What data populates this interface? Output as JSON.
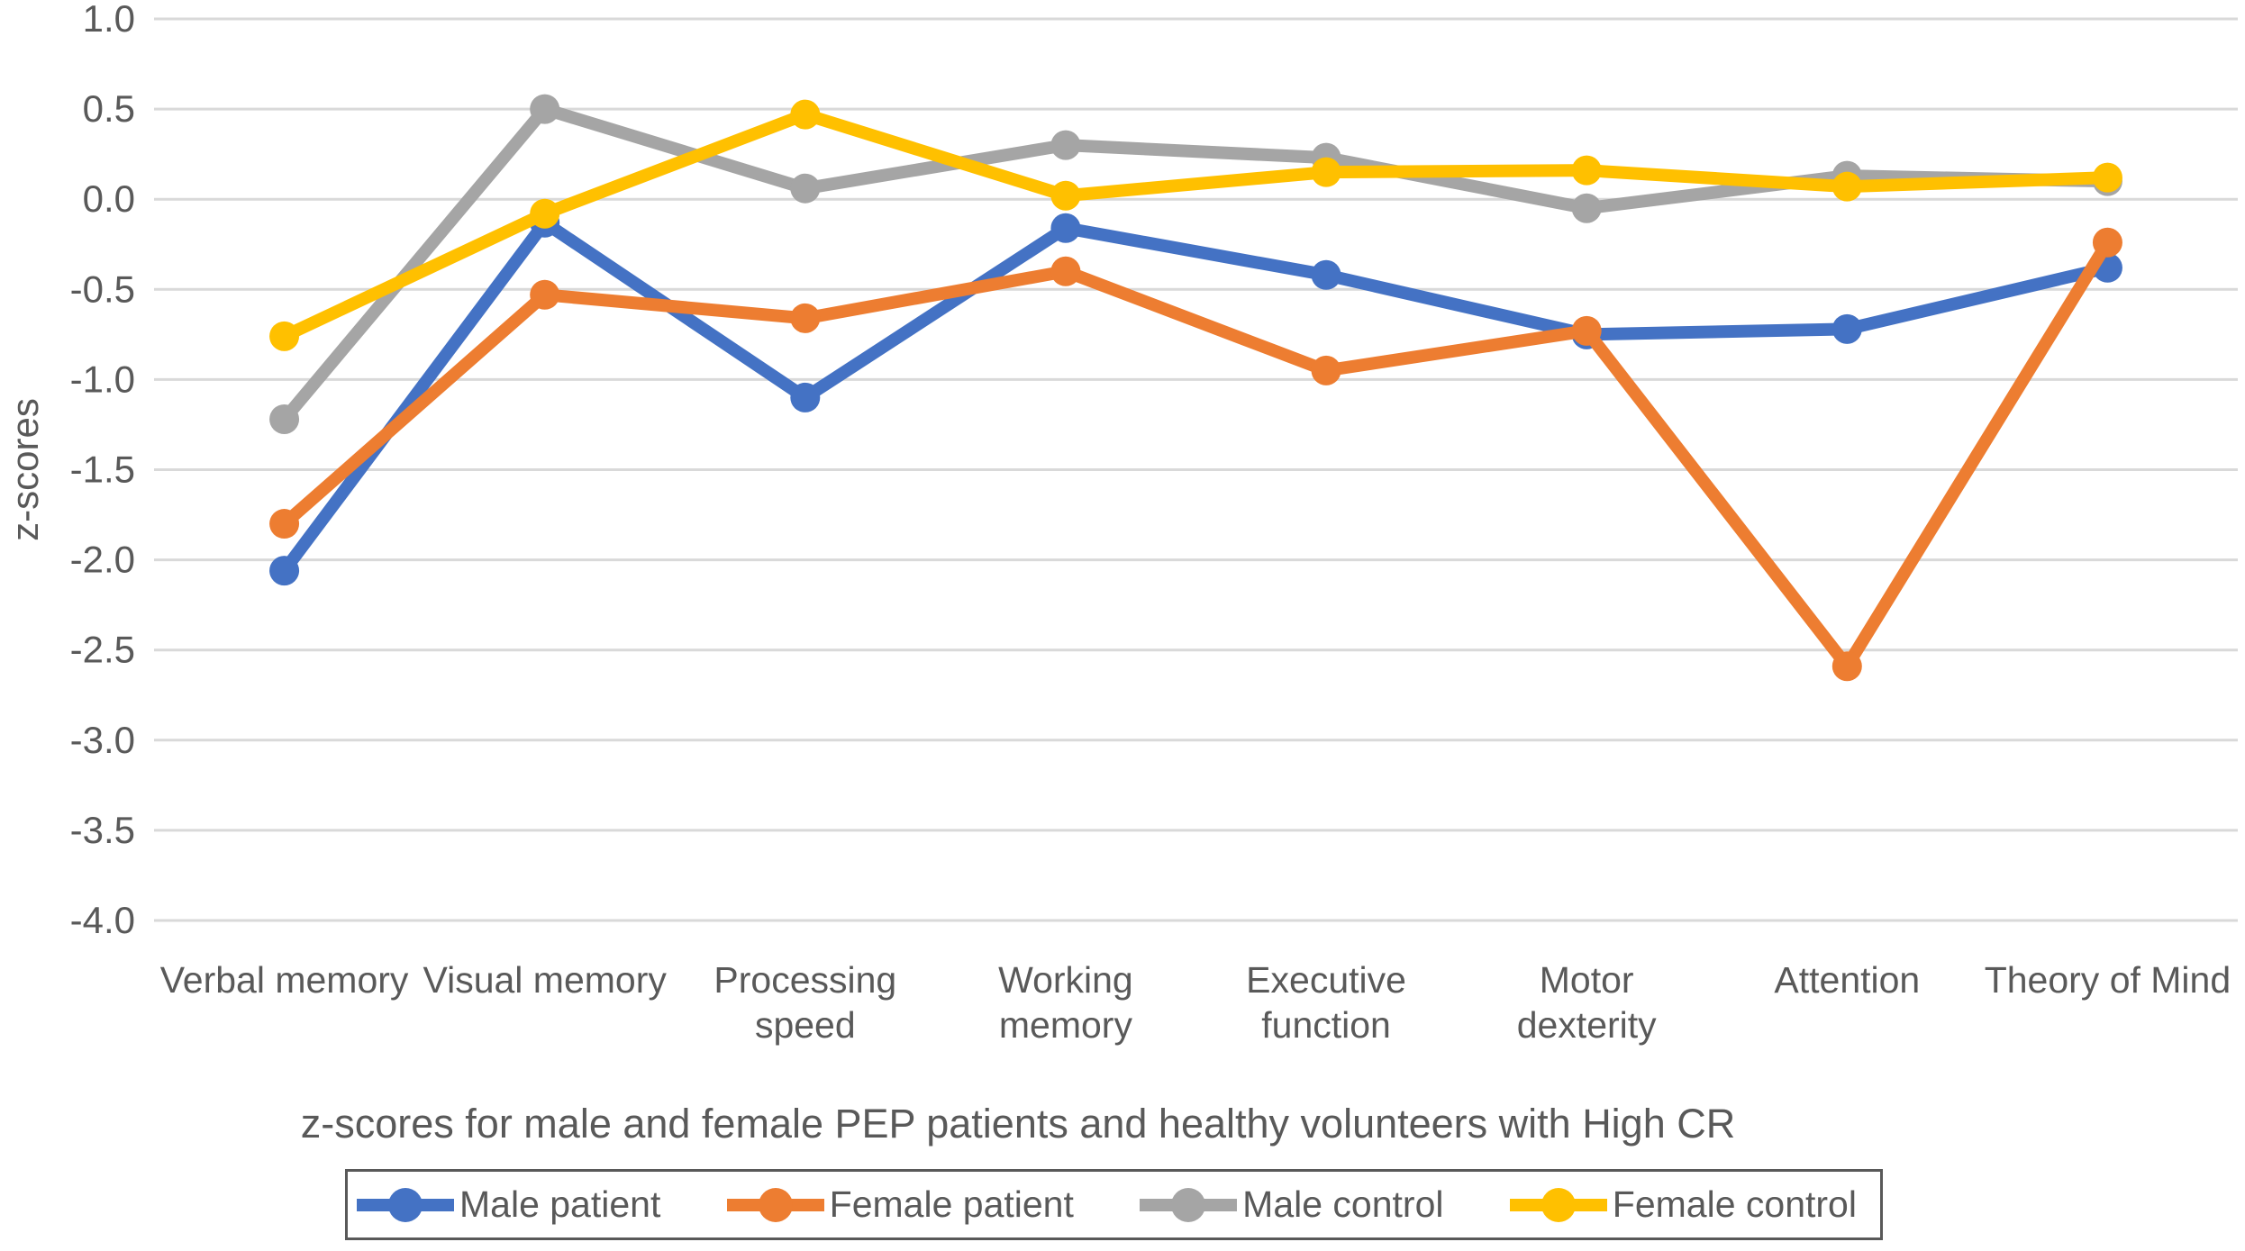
{
  "figure": {
    "background": "#ffffff",
    "text_color": "#595959",
    "gridline_color": "#d9d9d9",
    "legend_border_color": "#595959"
  },
  "chart_data": {
    "type": "line",
    "title": "z-scores for male and female PEP patients and healthy volunteers with High CR",
    "xlabel": "",
    "ylabel": "z-scores",
    "ylim": [
      -4.0,
      1.0
    ],
    "y_ticks": [
      "1.0",
      "0.5",
      "0.0",
      "-0.5",
      "-1.0",
      "-1.5",
      "-2.0",
      "-2.5",
      "-3.0",
      "-3.5",
      "-4.0"
    ],
    "grid": true,
    "legend_position": "bottom",
    "marker": "circle",
    "categories": [
      "Verbal memory",
      "Visual memory",
      "Processing speed",
      "Working memory",
      "Executive function",
      "Motor dexterity",
      "Attention",
      "Theory of Mind"
    ],
    "category_label_lines": [
      [
        "Verbal memory"
      ],
      [
        "Visual memory"
      ],
      [
        "Processing",
        "speed"
      ],
      [
        "Working",
        "memory"
      ],
      [
        "Executive",
        "function"
      ],
      [
        "Motor",
        "dexterity"
      ],
      [
        "Attention"
      ],
      [
        "Theory of Mind"
      ]
    ],
    "series": [
      {
        "name": "Male patient",
        "color": "#4472C4",
        "values": [
          -2.06,
          -0.13,
          -1.1,
          -0.16,
          -0.42,
          -0.75,
          -0.72,
          -0.38
        ]
      },
      {
        "name": "Female patient",
        "color": "#ED7D31",
        "values": [
          -1.8,
          -0.53,
          -0.66,
          -0.4,
          -0.95,
          -0.73,
          -2.59,
          -0.24
        ]
      },
      {
        "name": "Male control",
        "color": "#A5A5A5",
        "values": [
          -1.22,
          0.5,
          0.06,
          0.3,
          0.23,
          -0.05,
          0.13,
          0.1
        ]
      },
      {
        "name": "Female control",
        "color": "#FFC000",
        "values": [
          -0.76,
          -0.08,
          0.47,
          0.02,
          0.15,
          0.16,
          0.07,
          0.12
        ]
      }
    ]
  }
}
